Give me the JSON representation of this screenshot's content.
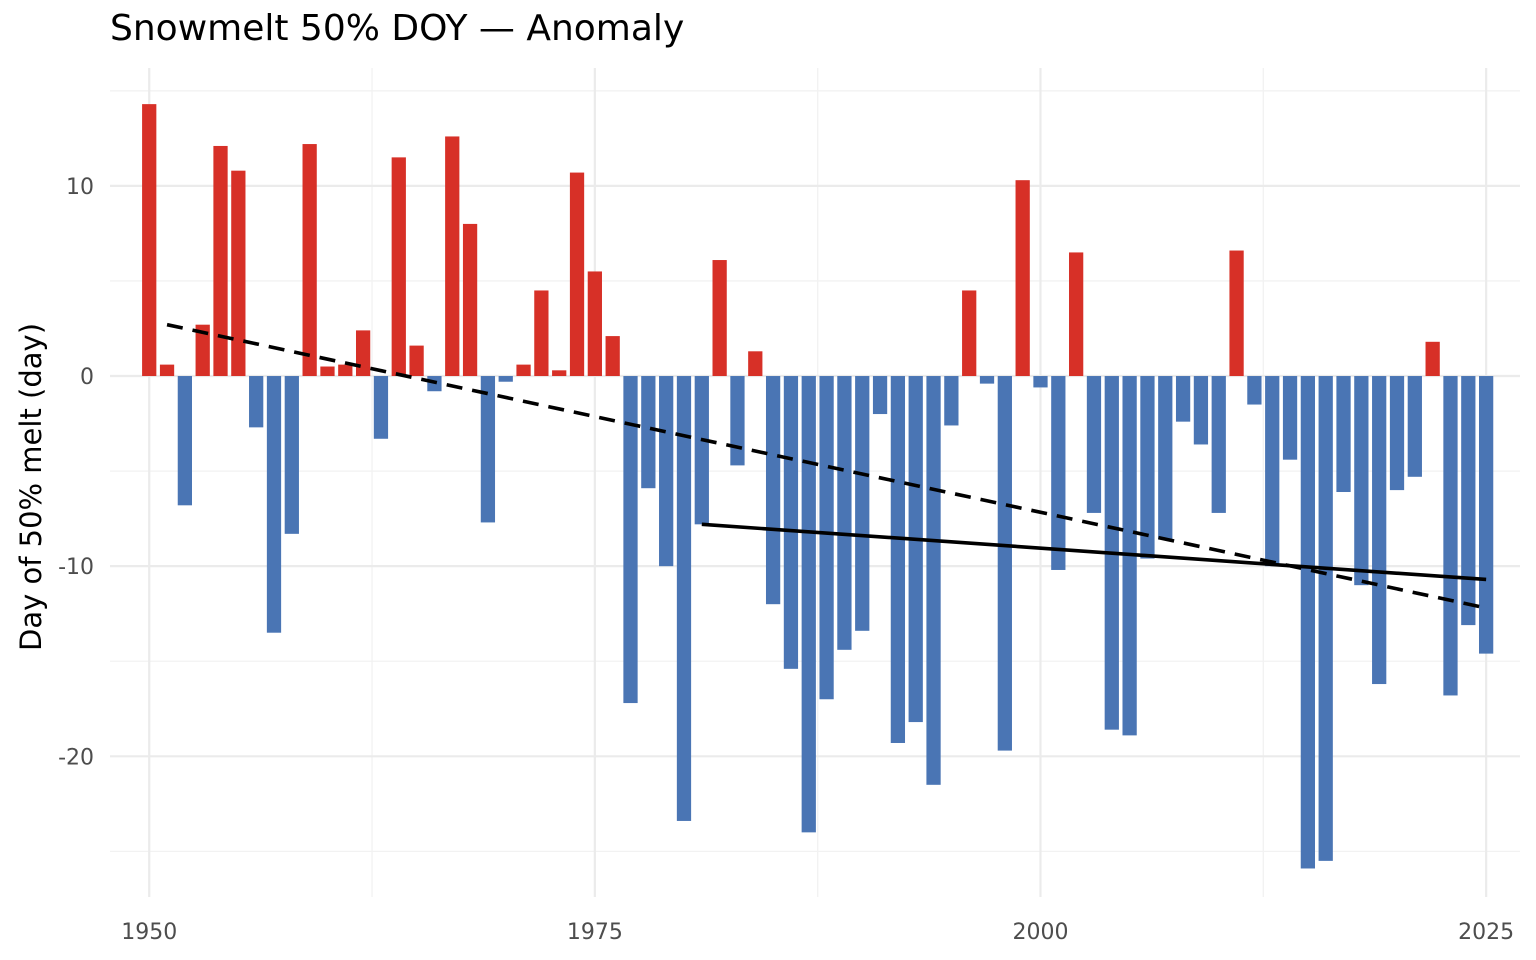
{
  "chart_data": {
    "type": "bar",
    "title": "Snowmelt 50% DOY — Anomaly",
    "xlabel": "",
    "ylabel": "Day of 50% melt (day)",
    "xlim": [
      1947.8,
      2026.9
    ],
    "ylim": [
      -27.4,
      16.2
    ],
    "x_ticks": [
      1950,
      1975,
      2000,
      2025
    ],
    "y_ticks": [
      10,
      0,
      -10,
      -20
    ],
    "y_tick_labels": [
      "10",
      "0",
      "-10",
      "-20"
    ],
    "grid": true,
    "colors": {
      "positive": "#d73027",
      "negative": "#4a75b4",
      "trend": "#000000"
    },
    "x": [
      1950,
      1951,
      1952,
      1953,
      1954,
      1955,
      1956,
      1957,
      1958,
      1959,
      1960,
      1961,
      1962,
      1963,
      1964,
      1965,
      1966,
      1967,
      1968,
      1969,
      1970,
      1971,
      1972,
      1973,
      1974,
      1975,
      1976,
      1977,
      1978,
      1979,
      1980,
      1981,
      1982,
      1983,
      1984,
      1985,
      1986,
      1987,
      1988,
      1989,
      1990,
      1991,
      1992,
      1993,
      1994,
      1995,
      1996,
      1997,
      1998,
      1999,
      2000,
      2001,
      2002,
      2003,
      2004,
      2005,
      2006,
      2007,
      2008,
      2009,
      2010,
      2011,
      2012,
      2013,
      2014,
      2015,
      2016,
      2017,
      2018,
      2019,
      2020,
      2021,
      2022,
      2023,
      2024,
      2025
    ],
    "values": [
      14.3,
      0.6,
      -6.8,
      2.7,
      12.1,
      10.8,
      -2.7,
      -13.5,
      -8.3,
      12.2,
      0.5,
      0.6,
      2.4,
      -3.3,
      11.5,
      1.6,
      -0.8,
      12.6,
      8.0,
      -7.7,
      -0.3,
      0.6,
      4.5,
      0.3,
      10.7,
      5.5,
      2.1,
      -17.2,
      -5.9,
      -10.0,
      -23.4,
      -7.8,
      6.1,
      -4.7,
      1.3,
      -12.0,
      -15.4,
      -24.0,
      -17.0,
      -14.4,
      -13.4,
      -2.0,
      -19.3,
      -18.2,
      -21.5,
      -2.6,
      4.5,
      -0.4,
      -19.7,
      10.3,
      -0.6,
      -10.2,
      6.5,
      -7.2,
      -18.6,
      -18.9,
      -9.6,
      -8.6,
      -2.4,
      -3.6,
      -7.2,
      6.6,
      -1.5,
      -10.0,
      -4.4,
      -25.9,
      -25.5,
      -6.1,
      -11.0,
      -16.2,
      -6.0,
      -5.3,
      1.8,
      -16.8,
      -13.1,
      -14.6
    ],
    "trend_lines": [
      {
        "style": "dashed",
        "x": [
          1951,
          2025
        ],
        "y": [
          2.7,
          -12.2
        ]
      },
      {
        "style": "solid",
        "x": [
          1981,
          2025
        ],
        "y": [
          -7.8,
          -10.7
        ]
      }
    ]
  }
}
